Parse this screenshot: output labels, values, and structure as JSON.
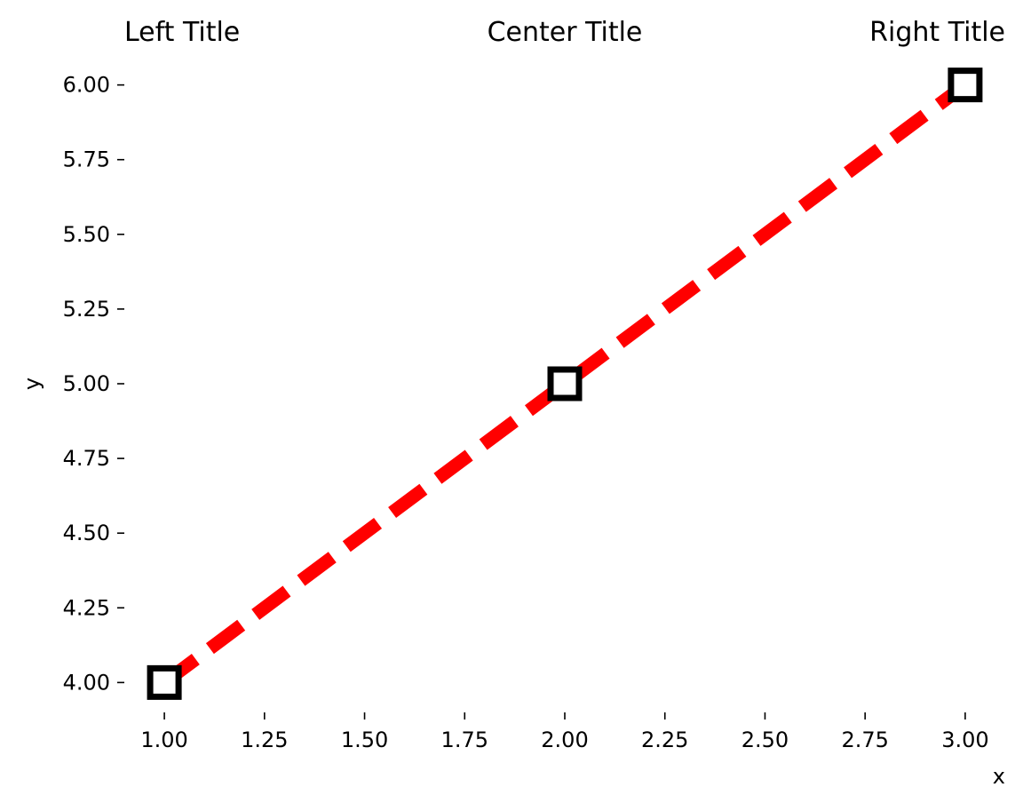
{
  "chart_data": {
    "type": "line",
    "titles": {
      "left": "Left Title",
      "center": "Center Title",
      "right": "Right Title"
    },
    "xlabel": "x",
    "ylabel": "y",
    "x": [
      1,
      2,
      3
    ],
    "series": [
      {
        "values": [
          4,
          5,
          6
        ],
        "color": "#ff0000",
        "line_style": "dashed",
        "marker": "square",
        "marker_edge_color": "#000000",
        "marker_face_color": "#ffffff"
      }
    ],
    "xticks": [
      1.0,
      1.25,
      1.5,
      1.75,
      2.0,
      2.25,
      2.5,
      2.75,
      3.0
    ],
    "xtick_labels": [
      "1.00",
      "1.25",
      "1.50",
      "1.75",
      "2.00",
      "2.25",
      "2.50",
      "2.75",
      "3.00"
    ],
    "yticks": [
      4.0,
      4.25,
      4.5,
      4.75,
      5.0,
      5.25,
      5.5,
      5.75,
      6.0
    ],
    "ytick_labels": [
      "4.00",
      "4.25",
      "4.50",
      "4.75",
      "5.00",
      "5.25",
      "5.50",
      "5.75",
      "6.00"
    ],
    "xlim": [
      0.9,
      3.1
    ],
    "ylim": [
      3.9,
      6.1
    ],
    "grid": false,
    "spines": false
  }
}
